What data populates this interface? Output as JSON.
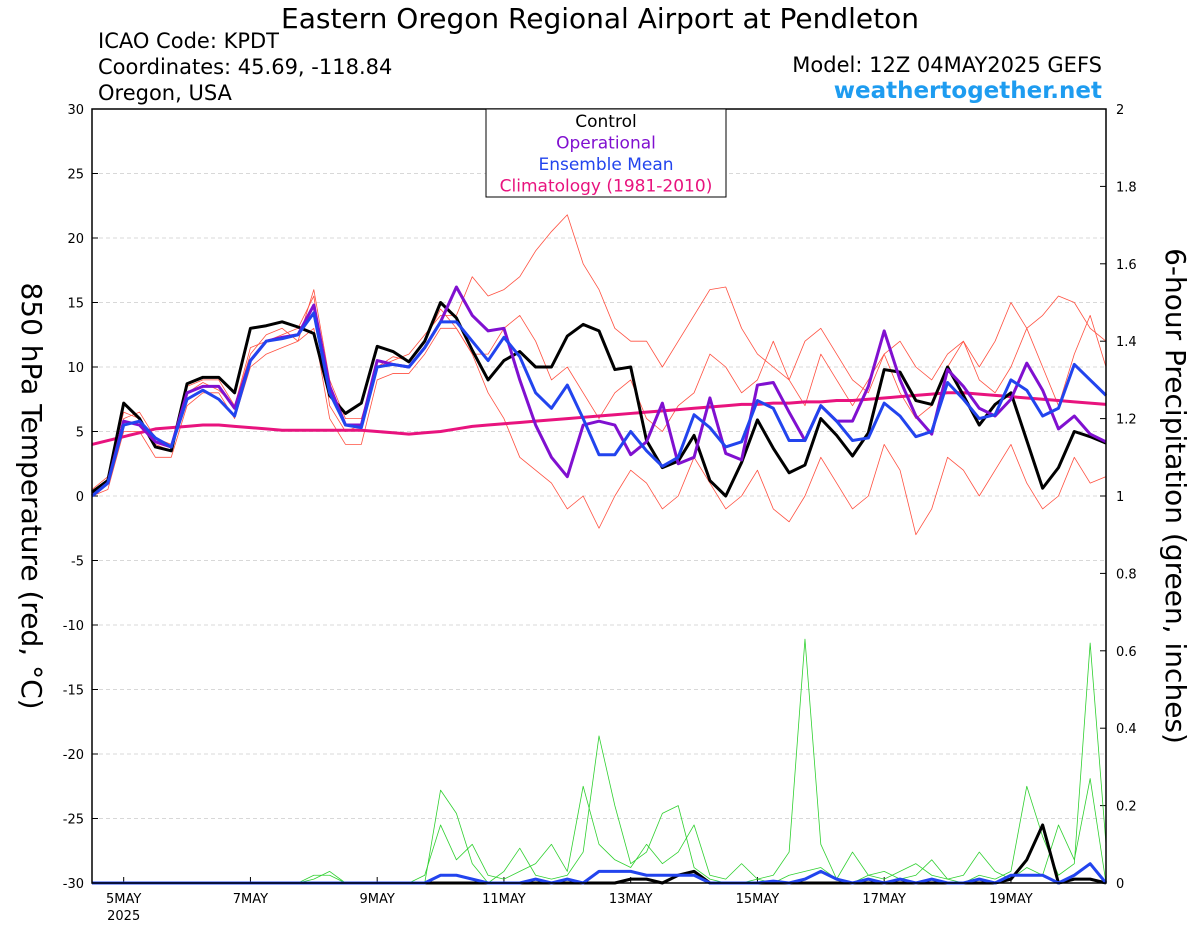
{
  "chart_data": {
    "type": "line",
    "title": "Eastern Oregon Regional Airport at Pendleton",
    "icao": "ICAO Code: KPDT",
    "coordinates": "Coordinates: 45.69, -118.84",
    "location": "Oregon, USA",
    "model": "Model: 12Z 04MAY2025 GEFS",
    "source": "weathertogether.net",
    "ylabel": "850 hPa Temperature (red, °C)",
    "y2label": "6-hour Precipitation (green, inches)",
    "x": [
      0,
      6,
      12,
      18,
      24,
      30,
      36,
      42,
      48,
      54,
      60,
      66,
      72,
      78,
      84,
      90,
      96,
      102,
      108,
      114,
      120,
      126,
      132,
      138,
      144,
      150,
      156,
      162,
      168,
      174,
      180,
      186,
      192,
      198,
      204,
      210,
      216,
      222,
      228,
      234,
      240,
      246,
      252,
      258,
      264,
      270,
      276,
      282,
      288,
      294,
      300,
      306,
      312,
      318,
      324,
      330,
      336,
      342,
      348,
      354,
      360,
      366,
      372,
      378,
      384
    ],
    "xlim": [
      0,
      384
    ],
    "xticks": [
      {
        "value": 12,
        "label": "5MAY"
      },
      {
        "value": 60,
        "label": "7MAY"
      },
      {
        "value": 108,
        "label": "9MAY"
      },
      {
        "value": 156,
        "label": "11MAY"
      },
      {
        "value": 204,
        "label": "13MAY"
      },
      {
        "value": 252,
        "label": "15MAY"
      },
      {
        "value": 300,
        "label": "17MAY"
      },
      {
        "value": 348,
        "label": "19MAY"
      }
    ],
    "year_label": "2025",
    "ylim": [
      -30,
      30
    ],
    "yticks": [
      -30,
      -25,
      -20,
      -15,
      -10,
      -5,
      0,
      5,
      10,
      15,
      20,
      25,
      30
    ],
    "y2lim": [
      0,
      2
    ],
    "y2ticks": [
      0,
      0.2,
      0.4,
      0.6,
      0.8,
      1,
      1.2,
      1.4,
      1.6,
      1.8,
      2
    ],
    "members": [
      {
        "color": "#ff5040",
        "values": [
          0.5,
          1.5,
          6.5,
          6,
          4,
          3.5,
          8.5,
          9,
          9,
          7,
          11,
          12.5,
          13,
          12,
          16,
          9,
          6,
          6,
          10,
          10.5,
          11,
          12.5,
          14,
          14,
          17,
          15.5,
          16,
          17,
          19,
          20.5,
          21.8,
          18,
          16,
          13,
          12,
          12,
          10,
          12,
          14,
          16,
          16.2,
          13,
          11,
          10,
          9,
          12,
          13,
          11,
          9,
          8,
          11,
          12,
          10,
          9,
          11,
          12,
          10,
          12,
          15,
          13,
          14,
          15.5,
          15,
          13,
          12
        ]
      },
      {
        "color": "#ff5040",
        "values": [
          0,
          0.5,
          5,
          5,
          3,
          3,
          7,
          8,
          8,
          6,
          10,
          11,
          11.5,
          12,
          13,
          6,
          4,
          4,
          9,
          9.5,
          9.5,
          11,
          13,
          13,
          11,
          8,
          6,
          3,
          2,
          1,
          -1,
          0,
          -2.5,
          0,
          2,
          1,
          -1,
          0,
          3,
          1,
          -1,
          0,
          2,
          -1,
          -2,
          0,
          3,
          1,
          -1,
          0,
          4,
          2,
          -3,
          -1,
          3,
          2,
          0,
          2,
          4,
          1,
          -1,
          0,
          3,
          1,
          1.5
        ]
      },
      {
        "color": "#ff5040",
        "values": [
          0.2,
          1,
          6,
          6.5,
          4.5,
          4,
          8,
          8.8,
          8.2,
          7,
          11.5,
          12,
          12.5,
          13,
          15.5,
          7,
          5,
          5.5,
          10,
          10.8,
          10.5,
          12,
          14.5,
          13,
          11,
          11,
          13,
          14,
          12,
          9,
          10,
          8,
          6,
          8,
          9,
          6,
          5,
          7,
          8,
          11,
          10,
          8,
          9,
          12,
          9,
          7,
          11,
          9,
          7,
          9,
          11,
          8,
          6,
          7,
          10,
          12,
          9,
          8,
          10,
          13,
          10,
          7,
          11,
          14,
          10
        ]
      },
      {
        "color": "#30d030",
        "axis": "y2",
        "values": [
          0,
          0,
          0,
          0,
          0,
          0,
          0,
          0,
          0,
          0,
          0,
          0,
          0,
          0,
          0.02,
          0.02,
          0,
          0,
          0,
          0,
          0,
          0,
          0.24,
          0.18,
          0.05,
          0,
          0.03,
          0.09,
          0.02,
          0.01,
          0.02,
          0.08,
          0.38,
          0.2,
          0.05,
          0.08,
          0.18,
          0.2,
          0.04,
          0.01,
          0,
          0,
          0.01,
          0.02,
          0.08,
          0.63,
          0.1,
          0.01,
          0,
          0.02,
          0.03,
          0.01,
          0.02,
          0.06,
          0.01,
          0,
          0.02,
          0.01,
          0.03,
          0.25,
          0.12,
          0.02,
          0.05,
          0.62,
          0.1
        ]
      },
      {
        "color": "#30d030",
        "axis": "y2",
        "values": [
          0,
          0,
          0,
          0,
          0,
          0,
          0,
          0,
          0,
          0,
          0,
          0,
          0,
          0,
          0.01,
          0.03,
          0,
          0,
          0,
          0,
          0,
          0.02,
          0.15,
          0.06,
          0.1,
          0.02,
          0.01,
          0.03,
          0.05,
          0.1,
          0.03,
          0.25,
          0.1,
          0.06,
          0.04,
          0.1,
          0.05,
          0.08,
          0.15,
          0.02,
          0.01,
          0.05,
          0.01,
          0,
          0.02,
          0.03,
          0.04,
          0.01,
          0.08,
          0.02,
          0.01,
          0.03,
          0.05,
          0.02,
          0.01,
          0.02,
          0.08,
          0.03,
          0.01,
          0.04,
          0.02,
          0.15,
          0.06,
          0.27,
          0
        ]
      }
    ],
    "series": [
      {
        "name": "Climatology (1981-2010)",
        "color": "#e8137e",
        "width": 3,
        "values": [
          4,
          4.3,
          4.6,
          4.9,
          5.2,
          5.3,
          5.4,
          5.5,
          5.5,
          5.4,
          5.3,
          5.2,
          5.1,
          5.1,
          5.1,
          5.1,
          5.1,
          5.1,
          5.0,
          4.9,
          4.8,
          4.9,
          5.0,
          5.2,
          5.4,
          5.5,
          5.6,
          5.7,
          5.8,
          5.9,
          6.0,
          6.1,
          6.2,
          6.3,
          6.4,
          6.5,
          6.6,
          6.7,
          6.8,
          6.9,
          7.0,
          7.1,
          7.1,
          7.2,
          7.2,
          7.3,
          7.3,
          7.4,
          7.4,
          7.5,
          7.6,
          7.7,
          7.8,
          7.9,
          8.0,
          8.0,
          7.9,
          7.8,
          7.7,
          7.6,
          7.5,
          7.4,
          7.3,
          7.2,
          7.1
        ]
      },
      {
        "name": "Control",
        "color": "#000000",
        "width": 3,
        "values": [
          0.3,
          1.2,
          7.2,
          6,
          3.8,
          3.5,
          8.7,
          9.2,
          9.2,
          8,
          13,
          13.2,
          13.5,
          13.1,
          12.6,
          7.8,
          6.4,
          7.2,
          11.6,
          11.2,
          10.4,
          12,
          15,
          13.8,
          11.3,
          9,
          10.5,
          11.2,
          10,
          10,
          12.4,
          13.3,
          12.8,
          9.8,
          10,
          4.3,
          2.2,
          2.7,
          4.7,
          1.2,
          0,
          2.6,
          5.9,
          3.7,
          1.8,
          2.4,
          6,
          4.7,
          3.1,
          4.9,
          9.8,
          9.6,
          7.4,
          7.1,
          10,
          7.8,
          5.5,
          7.1,
          8,
          4.3,
          0.6,
          2.2,
          5,
          4.6,
          4.1
        ],
        "precip_values": [
          0,
          0,
          0,
          0,
          0,
          0,
          0,
          0,
          0,
          0,
          0,
          0,
          0,
          0,
          0,
          0,
          0,
          0,
          0,
          0,
          0,
          0,
          0,
          0,
          0,
          0,
          0,
          0,
          0,
          0,
          0,
          0,
          0,
          0,
          0.01,
          0.01,
          0,
          0.02,
          0.03,
          0,
          0,
          0,
          0,
          0,
          0,
          0,
          0,
          0,
          0,
          0,
          0,
          0,
          0,
          0,
          0,
          0,
          0,
          0,
          0.01,
          0.06,
          0.15,
          0,
          0.01,
          0.01,
          0
        ]
      },
      {
        "name": "Operational",
        "color": "#8010d0",
        "width": 3,
        "values": [
          0,
          1,
          5.8,
          5.5,
          4.2,
          3.8,
          8,
          8.5,
          8.5,
          6.8,
          10.5,
          12,
          12.3,
          12.5,
          14.8,
          8.5,
          5.5,
          5.5,
          10.5,
          10.2,
          10,
          11.5,
          13.5,
          16.2,
          14,
          12.8,
          13,
          9,
          5.5,
          3,
          1.5,
          5.5,
          5.8,
          5.5,
          3.2,
          4.2,
          7.2,
          2.5,
          3,
          7.6,
          3.3,
          2.8,
          8.6,
          8.8,
          6.5,
          4.3,
          7,
          5.8,
          5.8,
          8.5,
          12.8,
          9,
          6.2,
          4.8,
          9.8,
          8.5,
          6.8,
          6.2,
          7.5,
          10.3,
          8.2,
          5.2,
          6.2,
          4.8,
          4.2
        ]
      },
      {
        "name": "Ensemble Mean",
        "color": "#2244ee",
        "width": 3,
        "values": [
          0,
          1,
          5.5,
          5.8,
          4.5,
          3.8,
          7.5,
          8.2,
          7.5,
          6.2,
          10.5,
          12,
          12.2,
          12.5,
          14.2,
          8,
          5.5,
          5.3,
          10,
          10.2,
          10,
          11.5,
          13.5,
          13.5,
          12,
          10.5,
          12.3,
          10.8,
          8,
          6.8,
          8.6,
          6,
          3.2,
          3.2,
          5,
          3.5,
          2.3,
          3,
          6.3,
          5.3,
          3.8,
          4.2,
          7.4,
          6.8,
          4.3,
          4.3,
          7,
          5.8,
          4.3,
          4.5,
          7.2,
          6.2,
          4.6,
          5,
          8.8,
          7.5,
          6,
          6.3,
          9,
          8.2,
          6.2,
          6.8,
          10.2,
          9,
          7.8
        ],
        "precip_values": [
          0,
          0,
          0,
          0,
          0,
          0,
          0,
          0,
          0,
          0,
          0,
          0,
          0,
          0,
          0,
          0,
          0,
          0,
          0,
          0,
          0,
          0,
          0.02,
          0.02,
          0.01,
          0,
          0,
          0,
          0.01,
          0,
          0.01,
          0,
          0.03,
          0.03,
          0.03,
          0.02,
          0.02,
          0.02,
          0.02,
          0,
          0,
          0,
          0,
          0.005,
          0,
          0.01,
          0.03,
          0.01,
          0,
          0.01,
          0,
          0.01,
          0,
          0.01,
          0,
          0,
          0.01,
          0,
          0.02,
          0.02,
          0.02,
          0,
          0.02,
          0.05,
          0
        ]
      }
    ],
    "legend": "upper center"
  }
}
